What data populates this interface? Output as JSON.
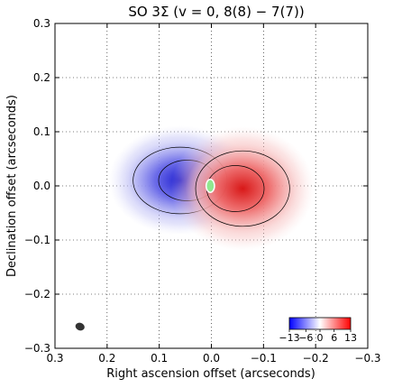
{
  "chart_data": {
    "type": "heatmap",
    "title": "SO 3Σ (v = 0,  8(8) − 7(7))",
    "xlabel": "Right ascension offset (arcseconds)",
    "ylabel": "Declination offset (arcseconds)",
    "xlim": [
      0.3,
      -0.3
    ],
    "ylim": [
      -0.3,
      0.3
    ],
    "x_ticks": [
      "0.3",
      "0.2",
      "0.1",
      "0.0",
      "−0.1",
      "−0.2",
      "−0.3"
    ],
    "y_ticks": [
      "−0.3",
      "−0.2",
      "−0.1",
      "0.0",
      "0.1",
      "0.2",
      "0.3"
    ],
    "grid": true,
    "colormap": "bwr",
    "colorbar": {
      "placement": "bottom-right",
      "ticks": [
        "−13",
        "−6",
        "0",
        "6",
        "13"
      ],
      "range": [
        -13,
        13
      ]
    },
    "blobs": [
      {
        "name": "blue-lobe",
        "cx": 0.06,
        "cy": 0.01,
        "rx": 0.11,
        "ry": 0.075,
        "peak": -13,
        "color": "#4040e8"
      },
      {
        "name": "red-lobe",
        "cx": -0.06,
        "cy": -0.005,
        "rx": 0.11,
        "ry": 0.085,
        "peak": 13,
        "color": "#e83030"
      }
    ],
    "continuum": {
      "cx": 0.002,
      "cy": 0.0,
      "rx": 0.008,
      "ry": 0.012,
      "color": "#90e890"
    },
    "beam": {
      "cx": 0.252,
      "cy": -0.26,
      "rx": 0.009,
      "ry": 0.007,
      "color": "#333333"
    }
  }
}
